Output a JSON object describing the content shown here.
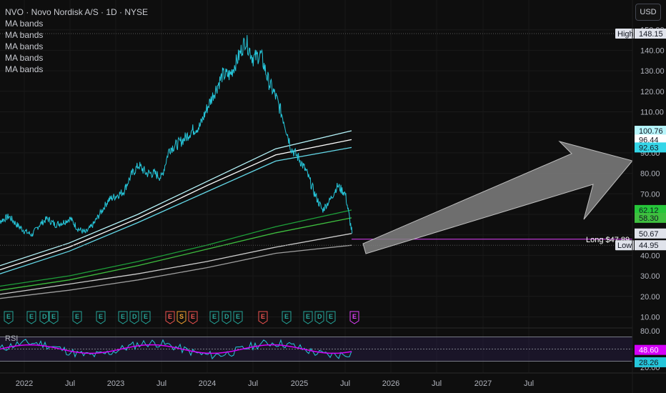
{
  "header": {
    "title": "NVO · Novo Nordisk A/S · 1D · NYSE",
    "currency_button": "USD"
  },
  "indicators": [
    "MA bands",
    "MA bands",
    "MA bands",
    "MA bands",
    "MA bands"
  ],
  "chart_data": {
    "type": "line",
    "price_axis": {
      "ticks": [
        150,
        140,
        130,
        120,
        110,
        100,
        90,
        80,
        70,
        60,
        50,
        40,
        30,
        20,
        10
      ],
      "ylim": [
        0,
        152
      ]
    },
    "x_axis": {
      "labels": [
        "2022",
        "Jul",
        "2023",
        "Jul",
        "2024",
        "Jul",
        "2025",
        "Jul",
        "2026",
        "Jul",
        "2027",
        "Jul"
      ]
    },
    "price_series": [
      [
        "2021-09-01",
        54
      ],
      [
        "2021-10-01",
        57
      ],
      [
        "2021-11-01",
        59
      ],
      [
        "2021-12-01",
        55
      ],
      [
        "2022-01-01",
        52
      ],
      [
        "2022-02-01",
        50
      ],
      [
        "2022-03-01",
        55
      ],
      [
        "2022-04-01",
        58
      ],
      [
        "2022-05-01",
        55
      ],
      [
        "2022-06-01",
        56
      ],
      [
        "2022-07-01",
        58
      ],
      [
        "2022-08-01",
        53
      ],
      [
        "2022-09-01",
        51
      ],
      [
        "2022-10-01",
        55
      ],
      [
        "2022-11-01",
        61
      ],
      [
        "2022-12-01",
        67
      ],
      [
        "2023-01-01",
        69
      ],
      [
        "2023-02-01",
        71
      ],
      [
        "2023-03-01",
        79
      ],
      [
        "2023-04-01",
        84
      ],
      [
        "2023-05-01",
        80
      ],
      [
        "2023-06-01",
        80
      ],
      [
        "2023-07-01",
        78
      ],
      [
        "2023-08-01",
        92
      ],
      [
        "2023-09-01",
        94
      ],
      [
        "2023-10-01",
        97
      ],
      [
        "2023-11-01",
        101
      ],
      [
        "2023-12-01",
        103
      ],
      [
        "2024-01-01",
        112
      ],
      [
        "2024-02-01",
        120
      ],
      [
        "2024-03-01",
        128
      ],
      [
        "2024-04-01",
        128
      ],
      [
        "2024-05-01",
        136
      ],
      [
        "2024-06-01",
        145
      ],
      [
        "2024-07-01",
        136
      ],
      [
        "2024-08-01",
        138
      ],
      [
        "2024-09-01",
        125
      ],
      [
        "2024-10-01",
        117
      ],
      [
        "2024-11-01",
        106
      ],
      [
        "2024-12-01",
        92
      ],
      [
        "2025-01-01",
        87
      ],
      [
        "2025-02-01",
        80
      ],
      [
        "2025-03-01",
        70
      ],
      [
        "2025-04-01",
        62
      ],
      [
        "2025-05-01",
        67
      ],
      [
        "2025-06-01",
        74
      ],
      [
        "2025-07-01",
        70
      ],
      [
        "2025-07-28",
        50.67
      ]
    ],
    "ma_bands": [
      {
        "name": "MA bands",
        "color": "#b6f5fb",
        "values": [
          [
            0,
            35
          ],
          [
            0.5,
            46
          ],
          [
            1,
            60
          ],
          [
            1.5,
            76
          ],
          [
            2,
            92
          ],
          [
            2.55,
            100.76
          ]
        ]
      },
      {
        "name": "MA bands",
        "color": "#ffffff",
        "values": [
          [
            0,
            33
          ],
          [
            0.5,
            44
          ],
          [
            1,
            58
          ],
          [
            1.5,
            74
          ],
          [
            2,
            89
          ],
          [
            2.55,
            96.44
          ]
        ]
      },
      {
        "name": "MA bands",
        "color": "#64d8e8",
        "values": [
          [
            0,
            31
          ],
          [
            0.5,
            42
          ],
          [
            1,
            56
          ],
          [
            1.5,
            71
          ],
          [
            2,
            86
          ],
          [
            2.55,
            92.63
          ]
        ]
      },
      {
        "name": "MA bands",
        "color": "#1ea13a",
        "values": [
          [
            0,
            25
          ],
          [
            0.5,
            30
          ],
          [
            1,
            37
          ],
          [
            1.5,
            45
          ],
          [
            2,
            54
          ],
          [
            2.55,
            62.12
          ]
        ]
      },
      {
        "name": "MA bands",
        "color": "#3fbf3f",
        "values": [
          [
            0,
            23
          ],
          [
            0.5,
            28
          ],
          [
            1,
            35
          ],
          [
            1.5,
            43
          ],
          [
            2,
            51
          ],
          [
            2.55,
            58.3
          ]
        ]
      },
      {
        "name": "MA bands",
        "color": "#cccccc",
        "values": [
          [
            0,
            21
          ],
          [
            0.5,
            26
          ],
          [
            1,
            31
          ],
          [
            1.5,
            37
          ],
          [
            2,
            44
          ],
          [
            2.55,
            50.67
          ]
        ]
      },
      {
        "name": "MA bands",
        "color": "#9e9e9e",
        "values": [
          [
            0,
            19
          ],
          [
            0.5,
            23
          ],
          [
            1,
            28
          ],
          [
            1.5,
            34
          ],
          [
            2,
            41
          ],
          [
            2.55,
            44.95
          ]
        ]
      }
    ],
    "price_tags": [
      {
        "label": "High",
        "value": "148.15",
        "level": 148.15,
        "bg": "#e0e3eb",
        "fg": "#131722"
      },
      {
        "label": "",
        "value": "100.76",
        "level": 100.76,
        "bg": "#b6f5fb",
        "fg": "#131722"
      },
      {
        "label": "",
        "value": "96.44",
        "level": 96.44,
        "bg": "#ffffff",
        "fg": "#131722"
      },
      {
        "label": "",
        "value": "92.63",
        "level": 92.63,
        "bg": "#34d6e8",
        "fg": "#131722"
      },
      {
        "label": "",
        "value": "62.12",
        "level": 62.12,
        "bg": "#26c63a",
        "fg": "#131722"
      },
      {
        "label": "",
        "value": "58.30",
        "level": 58.3,
        "bg": "#3fbf3f",
        "fg": "#131722"
      },
      {
        "label": "",
        "value": "50.67",
        "level": 50.67,
        "bg": "#e0e3eb",
        "fg": "#131722"
      },
      {
        "label": "Low",
        "value": "44.95",
        "level": 44.95,
        "bg": "#e0e3eb",
        "fg": "#131722"
      }
    ],
    "long_line": {
      "label": "Long $47.89",
      "level": 47.89,
      "color": "#e040fb"
    },
    "event_markers": [
      "E",
      "E",
      "D",
      "E",
      "E",
      "E",
      "E",
      "D",
      "E",
      "E",
      "S",
      "E",
      "E",
      "D",
      "E",
      "E",
      "E",
      "E",
      "D",
      "E",
      "E"
    ],
    "rsi": {
      "label": "RSI",
      "ticks": [
        80,
        20
      ],
      "current": "48.60",
      "current_level": 48.6,
      "secondary": "28.26",
      "secondary_level": 28.26,
      "band": [
        70,
        30
      ]
    }
  },
  "colors": {
    "price": "#26c6da",
    "rsi": "#26c6da",
    "rsi_ma": "#d500f9",
    "arrow": "#8e8e8e"
  }
}
